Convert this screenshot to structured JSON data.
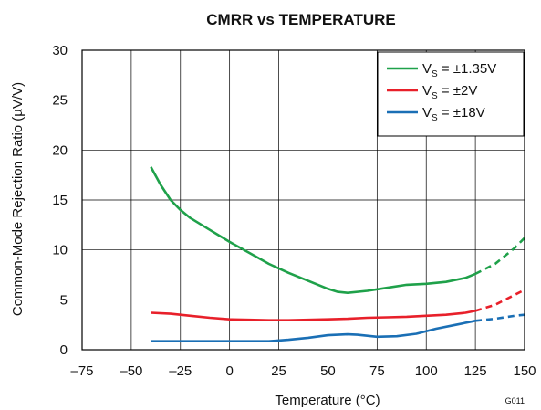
{
  "chart_data": {
    "type": "line",
    "title": "CMRR vs TEMPERATURE",
    "xlabel": "Temperature (°C)",
    "ylabel": "Common-Mode Rejection Ratio (µV/V)",
    "xlim": [
      -75,
      150
    ],
    "ylim": [
      0,
      30
    ],
    "x_ticks": [
      -75,
      -50,
      -25,
      0,
      25,
      50,
      75,
      100,
      125,
      150
    ],
    "y_ticks": [
      0,
      5,
      10,
      15,
      20,
      25,
      30
    ],
    "x_tick_labels": [
      "–75",
      "–50",
      "–25",
      "0",
      "25",
      "50",
      "75",
      "100",
      "125",
      "150"
    ],
    "y_tick_labels": [
      "0",
      "5",
      "10",
      "15",
      "20",
      "25",
      "30"
    ],
    "grid": true,
    "legend_position": "top-right",
    "figure_id": "G011",
    "series": [
      {
        "legend_main": "V",
        "legend_sub": "S",
        "legend_rest": " = ±1.35V",
        "color": "#1fa14a",
        "solid": [
          [
            -40,
            18.3
          ],
          [
            -35,
            16.5
          ],
          [
            -30,
            15.0
          ],
          [
            -25,
            14.0
          ],
          [
            -20,
            13.2
          ],
          [
            -10,
            12.0
          ],
          [
            0,
            10.8
          ],
          [
            10,
            9.7
          ],
          [
            20,
            8.6
          ],
          [
            30,
            7.7
          ],
          [
            40,
            6.9
          ],
          [
            50,
            6.1
          ],
          [
            55,
            5.8
          ],
          [
            60,
            5.7
          ],
          [
            70,
            5.9
          ],
          [
            80,
            6.2
          ],
          [
            90,
            6.5
          ],
          [
            100,
            6.6
          ],
          [
            110,
            6.8
          ],
          [
            120,
            7.2
          ],
          [
            125,
            7.6
          ]
        ],
        "dashed": [
          [
            125,
            7.6
          ],
          [
            135,
            8.6
          ],
          [
            145,
            10.2
          ],
          [
            150,
            11.2
          ]
        ]
      },
      {
        "legend_main": "V",
        "legend_sub": "S",
        "legend_rest": " = ±2V",
        "color": "#e8202a",
        "solid": [
          [
            -40,
            3.7
          ],
          [
            -30,
            3.6
          ],
          [
            -20,
            3.4
          ],
          [
            -10,
            3.2
          ],
          [
            0,
            3.05
          ],
          [
            10,
            3.0
          ],
          [
            20,
            2.95
          ],
          [
            30,
            2.95
          ],
          [
            40,
            3.0
          ],
          [
            50,
            3.05
          ],
          [
            60,
            3.1
          ],
          [
            70,
            3.2
          ],
          [
            80,
            3.25
          ],
          [
            90,
            3.3
          ],
          [
            100,
            3.4
          ],
          [
            110,
            3.5
          ],
          [
            120,
            3.7
          ],
          [
            125,
            3.9
          ]
        ],
        "dashed": [
          [
            125,
            3.9
          ],
          [
            135,
            4.5
          ],
          [
            145,
            5.5
          ],
          [
            150,
            6.0
          ]
        ]
      },
      {
        "legend_main": "V",
        "legend_sub": "S",
        "legend_rest": " = ±18V",
        "color": "#1a6fb5",
        "solid": [
          [
            -40,
            0.85
          ],
          [
            -20,
            0.85
          ],
          [
            0,
            0.85
          ],
          [
            20,
            0.85
          ],
          [
            30,
            1.0
          ],
          [
            40,
            1.2
          ],
          [
            50,
            1.45
          ],
          [
            60,
            1.55
          ],
          [
            65,
            1.5
          ],
          [
            75,
            1.3
          ],
          [
            85,
            1.35
          ],
          [
            95,
            1.6
          ],
          [
            105,
            2.1
          ],
          [
            115,
            2.5
          ],
          [
            125,
            2.9
          ]
        ],
        "dashed": [
          [
            125,
            2.9
          ],
          [
            135,
            3.1
          ],
          [
            145,
            3.4
          ],
          [
            150,
            3.5
          ]
        ]
      }
    ]
  }
}
